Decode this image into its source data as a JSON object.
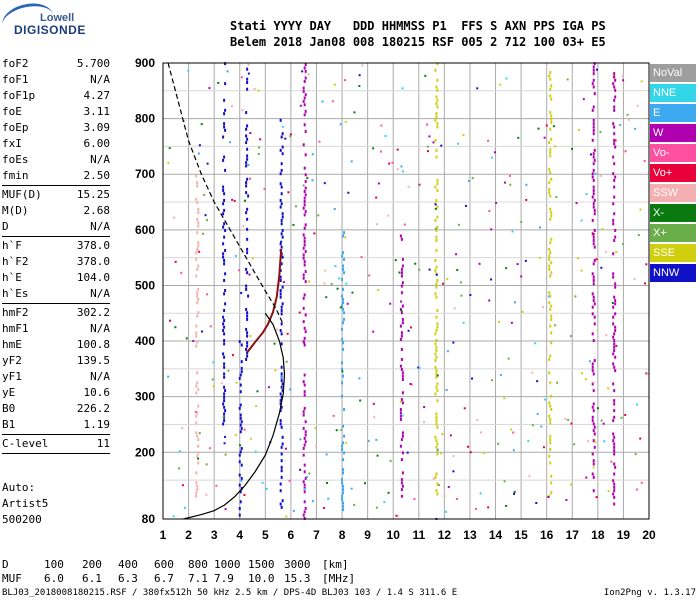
{
  "logo": {
    "line1": "Lowell",
    "line2": "DIGISONDE"
  },
  "header": {
    "labels": "Stati YYYY DAY   DDD HHMMSS P1  FFS S AXN PPS IGA PS",
    "values": "Belem 2018 Jan08 008 180215 RSF 005 2 712 100 03+ E5"
  },
  "params": [
    {
      "name": "foF2",
      "value": "5.700"
    },
    {
      "name": "foF1",
      "value": "N/A"
    },
    {
      "name": "foF1p",
      "value": "4.27"
    },
    {
      "name": "foE",
      "value": "3.11"
    },
    {
      "name": "foEp",
      "value": "3.09"
    },
    {
      "name": "fxI",
      "value": "6.00"
    },
    {
      "name": "foEs",
      "value": "N/A"
    },
    {
      "name": "fmin",
      "value": "2.50"
    },
    {
      "sep": true
    },
    {
      "name": "MUF(D)",
      "value": "15.25"
    },
    {
      "name": "M(D)",
      "value": "2.68"
    },
    {
      "name": "D",
      "value": "N/A"
    },
    {
      "sep": true
    },
    {
      "name": "h`F",
      "value": "378.0"
    },
    {
      "name": "h`F2",
      "value": "378.0"
    },
    {
      "name": "h`E",
      "value": "104.0"
    },
    {
      "name": "h`Es",
      "value": "N/A"
    },
    {
      "sep": true
    },
    {
      "name": "hmF2",
      "value": "302.2"
    },
    {
      "name": "hmF1",
      "value": "N/A"
    },
    {
      "name": "hmE",
      "value": "100.8"
    },
    {
      "name": "yF2",
      "value": "139.5"
    },
    {
      "name": "yF1",
      "value": "N/A"
    },
    {
      "name": "yE",
      "value": "10.6"
    },
    {
      "name": "B0",
      "value": "226.2"
    },
    {
      "name": "B1",
      "value": "1.19"
    },
    {
      "sep": true
    },
    {
      "name": "C-level",
      "value": "11"
    },
    {
      "sep": true
    }
  ],
  "autoscale": {
    "line1": "Auto:",
    "line2": "Artist5",
    "line3": "500200"
  },
  "legend": [
    {
      "label": "NoVal",
      "color": "#9e9e9e"
    },
    {
      "label": "NNE",
      "color": "#33d6e8"
    },
    {
      "label": "E",
      "color": "#3da9f0"
    },
    {
      "label": "W",
      "color": "#b000b0"
    },
    {
      "label": "Vo-",
      "color": "#ff4fa0"
    },
    {
      "label": "Vo+",
      "color": "#e8003a"
    },
    {
      "label": "SSW",
      "color": "#f4b0b0"
    },
    {
      "label": "X-",
      "color": "#0a7a10"
    },
    {
      "label": "X+",
      "color": "#6aae4a"
    },
    {
      "label": "SSE",
      "color": "#cfcf10"
    },
    {
      "label": "NNW",
      "color": "#1010c8"
    }
  ],
  "footer": {
    "row_d_label": "D",
    "row_d_values": [
      "100",
      "200",
      "400",
      "600",
      "800",
      "1000",
      "1500",
      "3000",
      "[km]"
    ],
    "row_muf_label": "MUF",
    "row_muf_values": [
      "6.0",
      "6.1",
      "6.3",
      "6.7",
      "7.1",
      "7.9",
      "10.0",
      "15.3",
      "[MHz]"
    ]
  },
  "fileinfo": "BLJ03_2018008180215.RSF / 380fx512h 50 kHz 2.5 km / DPS-4D BLJ03 103 / 1.4 S 311.6 E",
  "version": "Ion2Png v. 1.3.17",
  "chart_data": {
    "type": "scatter",
    "xlim": [
      1,
      20
    ],
    "ylim": [
      80,
      900
    ],
    "xticks": [
      1,
      2,
      3,
      4,
      5,
      6,
      7,
      8,
      9,
      10,
      11,
      12,
      13,
      14,
      15,
      16,
      17,
      18,
      19,
      20
    ],
    "yticks": [
      80,
      200,
      300,
      400,
      500,
      600,
      700,
      800,
      900
    ],
    "grid": true,
    "echo_traces": [
      {
        "x": 6.5,
        "y": [
          80,
          900
        ],
        "color": "#b000b0"
      },
      {
        "x": 4.25,
        "y": [
          360,
          900
        ],
        "color": "#1010c8"
      },
      {
        "x": 3.35,
        "y": [
          250,
          900
        ],
        "color": "#1010c8"
      },
      {
        "x": 8.0,
        "y": [
          90,
          600
        ],
        "color": "#3da9f0"
      },
      {
        "x": 11.65,
        "y": [
          100,
          900
        ],
        "color": "#cfcf10"
      },
      {
        "x": 16.1,
        "y": [
          120,
          900
        ],
        "color": "#cfcf10"
      },
      {
        "x": 17.8,
        "y": [
          100,
          900
        ],
        "color": "#b000b0"
      },
      {
        "x": 18.6,
        "y": [
          100,
          900
        ],
        "color": "#b000b0"
      },
      {
        "x": 10.3,
        "y": [
          120,
          600
        ],
        "color": "#b000b0"
      },
      {
        "x": 5.6,
        "y": [
          100,
          800
        ],
        "color": "#1010c8"
      },
      {
        "x": 4.0,
        "y": [
          80,
          400
        ],
        "color": "#1010c8"
      },
      {
        "x": 2.3,
        "y": [
          120,
          700
        ],
        "color": "#f4b0b0"
      }
    ],
    "ordinary_trace": {
      "x": [
        4.3,
        4.6,
        4.9,
        5.1,
        5.3,
        5.45,
        5.55,
        5.62
      ],
      "y": [
        380,
        398,
        415,
        430,
        452,
        480,
        520,
        565
      ],
      "color": "#8b1010"
    },
    "profile_solid": {
      "x": [
        1.8,
        2.5,
        3.0,
        3.4,
        3.8,
        4.2,
        4.6,
        5.0,
        5.3,
        5.55,
        5.7,
        5.75,
        5.7,
        5.55,
        5.3,
        5.0
      ],
      "y": [
        80,
        88,
        95,
        105,
        120,
        140,
        165,
        195,
        230,
        270,
        305,
        340,
        370,
        400,
        430,
        450
      ]
    },
    "profile_dashed": {
      "x": [
        1.2,
        1.6,
        2.0,
        2.5,
        3.0,
        3.5,
        4.0,
        4.5,
        5.0,
        5.4,
        5.7
      ],
      "y": [
        900,
        830,
        760,
        700,
        650,
        610,
        570,
        530,
        490,
        460,
        430
      ]
    }
  }
}
